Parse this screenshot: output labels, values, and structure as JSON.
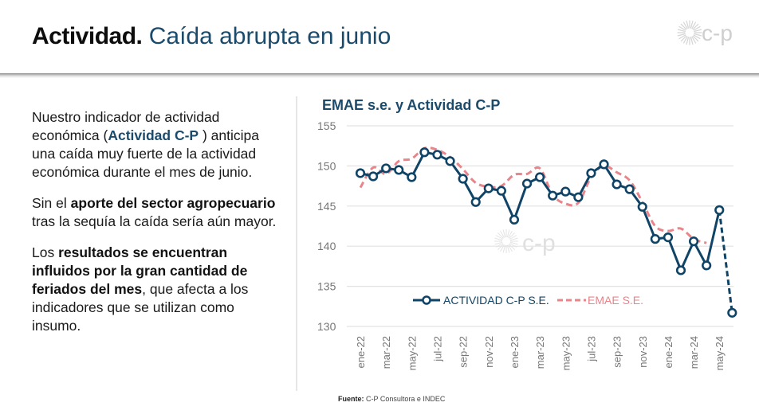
{
  "header": {
    "title_bold": "Actividad.",
    "title_light": "Caída abrupta en junio",
    "logo_text": "c-p"
  },
  "left_panel": {
    "p1_pre": "Nuestro indicador de actividad económica (",
    "p1_brand": "Actividad C-P",
    "p1_post": " ) anticipa una caída muy fuerte de la actividad económica durante el mes de junio.",
    "p2_pre": "Sin el ",
    "p2_bold": "aporte del sector agropecuario",
    "p2_post": " tras la sequía la caída sería aún mayor.",
    "p3_pre": "Los ",
    "p3_bold": "resultados se encuentran influidos por la gran cantidad de feriados del mes",
    "p3_post": ", que afecta a los indicadores que se utilizan como insumo."
  },
  "source": {
    "label": "Fuente:",
    "text": " C-P Consultora e INDEC"
  },
  "colors": {
    "actividad": "#0f4466",
    "emae": "#e8848a",
    "grid": "#e2e2e2",
    "title_dark": "#1b4a6b"
  },
  "chart_data": {
    "type": "line",
    "title": "EMAE s.e. y Actividad C-P",
    "xlabel": "",
    "ylabel": "",
    "ylim": [
      130,
      155
    ],
    "yticks": [
      155,
      150,
      145,
      140,
      135,
      130
    ],
    "grid": true,
    "legend_position": "bottom-center-inside",
    "x": [
      "ene-22",
      "feb-22",
      "mar-22",
      "abr-22",
      "may-22",
      "jun-22",
      "jul-22",
      "ago-22",
      "sep-22",
      "oct-22",
      "nov-22",
      "dic-22",
      "ene-23",
      "feb-23",
      "mar-23",
      "abr-23",
      "may-23",
      "jun-23",
      "jul-23",
      "ago-23",
      "sep-23",
      "oct-23",
      "nov-23",
      "dic-23",
      "ene-24",
      "feb-24",
      "mar-24",
      "abr-24",
      "may-24",
      "jun-24"
    ],
    "xtick_labels": [
      "ene-22",
      "mar-22",
      "may-22",
      "jul-22",
      "sep-22",
      "nov-22",
      "ene-23",
      "mar-23",
      "may-23",
      "jul-23",
      "sep-23",
      "nov-23",
      "ene-24",
      "mar-24",
      "may-24"
    ],
    "series": [
      {
        "name": "ACTIVIDAD C-P S.E.",
        "style": "solid-with-markers",
        "projection_from_index": 28,
        "values": [
          149.1,
          148.7,
          149.7,
          149.5,
          148.6,
          151.7,
          151.4,
          150.6,
          148.4,
          145.5,
          147.2,
          146.9,
          143.3,
          147.8,
          148.6,
          146.3,
          146.8,
          146.1,
          149.1,
          150.2,
          147.7,
          147.1,
          144.9,
          140.9,
          141.1,
          137.0,
          140.6,
          137.6,
          144.5,
          131.7
        ]
      },
      {
        "name": "EMAE S.E.",
        "style": "dashed",
        "values": [
          147.3,
          149.8,
          149.0,
          150.6,
          150.9,
          152.2,
          152.0,
          151.1,
          149.6,
          147.9,
          147.4,
          147.5,
          148.9,
          149.0,
          149.7,
          146.4,
          145.3,
          145.4,
          148.6,
          150.0,
          149.2,
          148.2,
          145.5,
          142.5,
          141.9,
          142.2,
          140.9,
          140.4,
          null,
          null
        ]
      }
    ]
  }
}
